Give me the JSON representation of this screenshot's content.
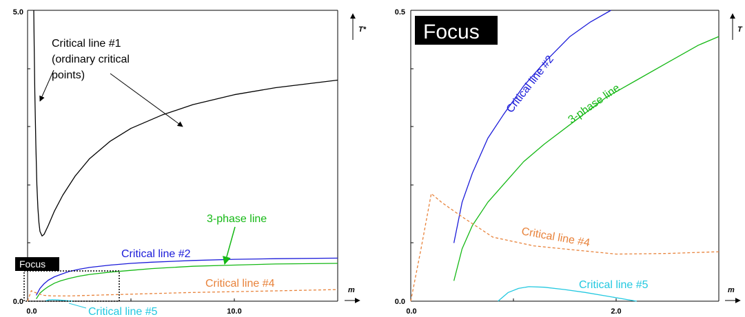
{
  "chart_data": [
    {
      "type": "line",
      "panel": "main",
      "xlim": [
        0,
        15
      ],
      "ylim": [
        0,
        5
      ],
      "xticks": [
        "0.0",
        "10.0"
      ],
      "yticks": [
        "0.0",
        "5.0"
      ],
      "xlabel": "m",
      "ylabel": "T*",
      "grid": false,
      "series": [
        {
          "key": "c1",
          "color": "#000000",
          "dash": "",
          "x": [
            0.3,
            0.32,
            0.35,
            0.4,
            0.45,
            0.5,
            0.55,
            0.6,
            0.7,
            0.8,
            1.0,
            1.3,
            1.7,
            2.3,
            3.0,
            4.0,
            5.0,
            6.5,
            8.0,
            10.0,
            12.0,
            15.0
          ],
          "y": [
            5.0,
            4.4,
            3.6,
            2.7,
            2.0,
            1.6,
            1.35,
            1.2,
            1.12,
            1.15,
            1.3,
            1.55,
            1.82,
            2.15,
            2.45,
            2.75,
            2.97,
            3.2,
            3.38,
            3.55,
            3.67,
            3.8
          ]
        },
        {
          "key": "c2",
          "color": "#1a1ad9",
          "dash": "",
          "x": [
            0.42,
            0.6,
            0.8,
            1.0,
            1.3,
            1.6,
            2.0,
            2.5,
            3.0,
            4.0,
            5.0,
            6.0,
            8.0,
            10.0,
            12.0,
            15.0
          ],
          "y": [
            0.1,
            0.22,
            0.3,
            0.36,
            0.42,
            0.46,
            0.51,
            0.55,
            0.58,
            0.62,
            0.65,
            0.67,
            0.7,
            0.72,
            0.73,
            0.74
          ]
        },
        {
          "key": "tp",
          "color": "#14b814",
          "dash": "",
          "x": [
            0.42,
            0.6,
            0.8,
            1.0,
            1.3,
            1.6,
            2.0,
            2.5,
            3.0,
            4.0,
            5.0,
            6.0,
            8.0,
            10.0,
            12.0,
            15.0
          ],
          "y": [
            0.04,
            0.14,
            0.2,
            0.25,
            0.31,
            0.35,
            0.39,
            0.43,
            0.46,
            0.5,
            0.53,
            0.56,
            0.6,
            0.62,
            0.64,
            0.65
          ]
        },
        {
          "key": "c4",
          "color": "#e8823a",
          "dash": "4,3",
          "x": [
            0.0,
            0.18,
            0.3,
            0.5,
            0.8,
            1.2,
            2.0,
            3.0,
            5.0,
            8.0,
            11.0,
            15.0
          ],
          "y": [
            0.0,
            0.18,
            0.16,
            0.13,
            0.1,
            0.09,
            0.09,
            0.1,
            0.12,
            0.15,
            0.17,
            0.2
          ]
        },
        {
          "key": "c5",
          "color": "#22c8e0",
          "dash": "",
          "x": [
            0.85,
            1.0,
            1.2,
            1.5,
            1.8,
            2.2
          ],
          "y": [
            0.0,
            0.02,
            0.025,
            0.02,
            0.012,
            0.0
          ]
        }
      ]
    },
    {
      "type": "line",
      "panel": "focus",
      "xlim": [
        0,
        3
      ],
      "ylim": [
        0,
        0.5
      ],
      "xticks": [
        "0.0",
        "2.0"
      ],
      "yticks": [
        "0.0",
        "0.5"
      ],
      "xlabel": "m",
      "ylabel": "T",
      "grid": false,
      "series": [
        {
          "key": "c2",
          "color": "#1a1ad9",
          "dash": "",
          "x": [
            0.42,
            0.5,
            0.6,
            0.75,
            0.9,
            1.1,
            1.3,
            1.55,
            1.75,
            1.95
          ],
          "y": [
            0.1,
            0.17,
            0.22,
            0.28,
            0.32,
            0.37,
            0.41,
            0.455,
            0.48,
            0.5
          ]
        },
        {
          "key": "tp",
          "color": "#14b814",
          "dash": "",
          "x": [
            0.42,
            0.5,
            0.6,
            0.75,
            0.9,
            1.1,
            1.3,
            1.6,
            1.9,
            2.2,
            2.5,
            2.8,
            3.0
          ],
          "y": [
            0.035,
            0.09,
            0.13,
            0.17,
            0.2,
            0.24,
            0.27,
            0.31,
            0.35,
            0.38,
            0.41,
            0.44,
            0.455
          ]
        },
        {
          "key": "c4",
          "color": "#e8823a",
          "dash": "4,3",
          "x": [
            0.0,
            0.1,
            0.2,
            0.3,
            0.5,
            0.8,
            1.2,
            1.6,
            2.0,
            2.5,
            3.0
          ],
          "y": [
            0.0,
            0.09,
            0.185,
            0.17,
            0.145,
            0.11,
            0.095,
            0.088,
            0.081,
            0.082,
            0.085
          ]
        },
        {
          "key": "c5",
          "color": "#22c8e0",
          "dash": "",
          "x": [
            0.85,
            0.95,
            1.05,
            1.15,
            1.3,
            1.5,
            1.7,
            1.9,
            2.1,
            2.2
          ],
          "y": [
            0.0,
            0.015,
            0.022,
            0.025,
            0.024,
            0.02,
            0.015,
            0.009,
            0.003,
            0.0
          ]
        }
      ]
    }
  ],
  "main_annotations": {
    "c1_line1": "Critical line #1",
    "c1_line2": "(ordinary critical",
    "c1_line3": "points)",
    "three_phase": "3-phase line",
    "c2": "Critical line #2",
    "c4": "Critical line #4",
    "c5": "Critical line #5",
    "focus": "Focus"
  },
  "focus_annotations": {
    "title": "Focus",
    "c2": "Critical line #2",
    "three_phase": "3-phase line",
    "c4": "Critical line #4",
    "c5": "Critical line #5"
  },
  "colors": {
    "black": "#000000",
    "blue": "#1a1ad9",
    "green": "#14b814",
    "orange": "#e8823a",
    "cyan": "#22c8e0"
  }
}
